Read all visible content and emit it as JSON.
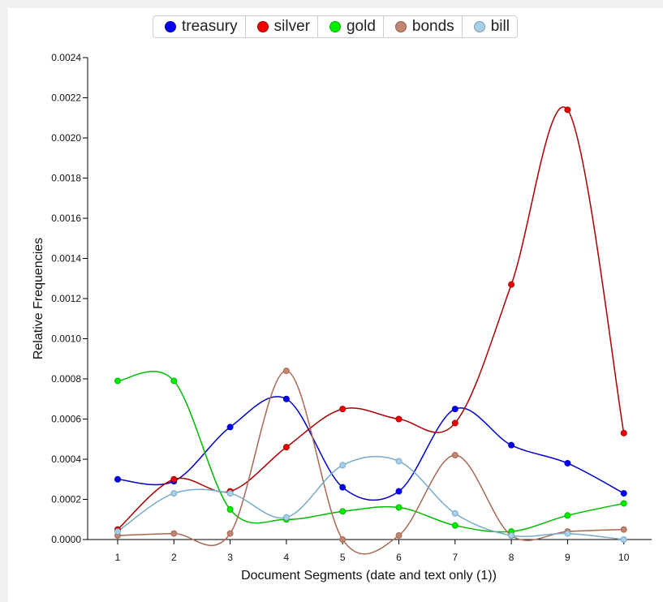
{
  "chart_data": {
    "type": "line",
    "x": [
      1,
      2,
      3,
      4,
      5,
      6,
      7,
      8,
      9,
      10
    ],
    "xlabel": "Document Segments (date and text only (1))",
    "ylabel": "Relative Frequencies",
    "ylim": [
      0,
      0.0024
    ],
    "yticks": [
      "0.0000",
      "0.0002",
      "0.0004",
      "0.0006",
      "0.0008",
      "0.0010",
      "0.0012",
      "0.0014",
      "0.0016",
      "0.0018",
      "0.0020",
      "0.0022",
      "0.0024"
    ],
    "xticks": [
      "1",
      "2",
      "3",
      "4",
      "5",
      "6",
      "7",
      "8",
      "9",
      "10"
    ],
    "legend_position": "top-center",
    "series": [
      {
        "name": "treasury",
        "color": "#0000cc",
        "swatch": "#0000ee",
        "values": [
          0.0003,
          0.00029,
          0.00056,
          0.0007,
          0.00026,
          0.00024,
          0.00065,
          0.00047,
          0.00038,
          0.00023
        ]
      },
      {
        "name": "silver",
        "color": "#aa0000",
        "swatch": "#ee0000",
        "values": [
          5e-05,
          0.0003,
          0.00024,
          0.00046,
          0.00065,
          0.0006,
          0.00058,
          0.00127,
          0.00214,
          0.00053
        ]
      },
      {
        "name": "gold",
        "color": "#00bb00",
        "swatch": "#00ee00",
        "values": [
          0.00079,
          0.00079,
          0.00015,
          0.0001,
          0.00014,
          0.00016,
          7e-05,
          4e-05,
          0.00012,
          0.00018
        ]
      },
      {
        "name": "bonds",
        "color": "#aa6655",
        "swatch": "#c08670",
        "values": [
          2e-05,
          3e-05,
          3e-05,
          0.00084,
          0.0,
          2e-05,
          0.00042,
          2e-05,
          4e-05,
          5e-05
        ]
      },
      {
        "name": "bill",
        "color": "#77aacc",
        "swatch": "#a8d0e6",
        "values": [
          4e-05,
          0.00023,
          0.00023,
          0.00011,
          0.00037,
          0.00039,
          0.00013,
          2e-05,
          3e-05,
          0.0
        ]
      }
    ]
  }
}
